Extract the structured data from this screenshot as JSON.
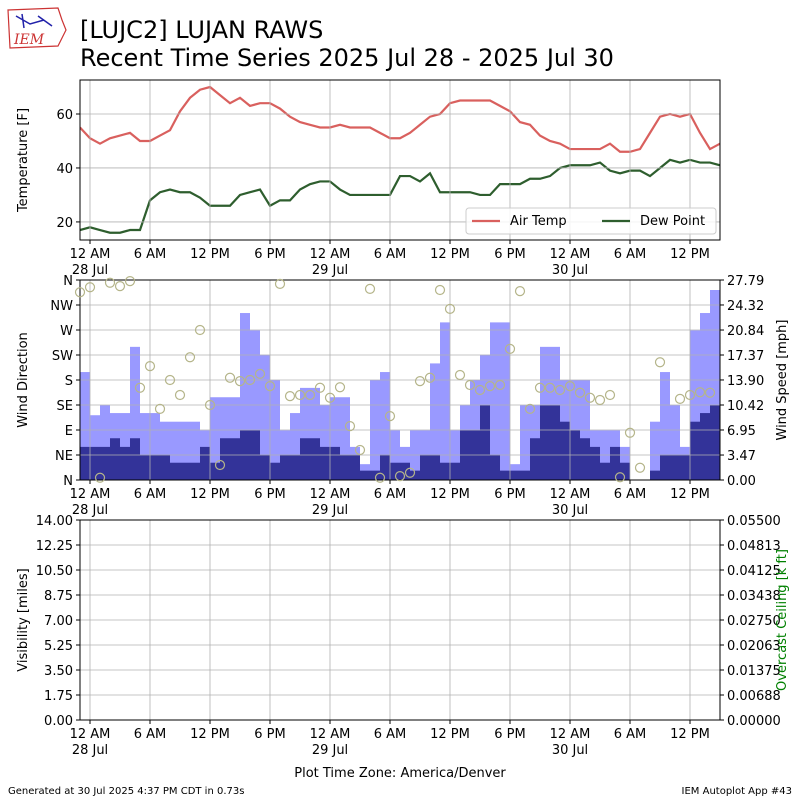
{
  "title": "[LUJC2] LUJAN RAWS",
  "subtitle": "Recent Time Series 2025 Jul 28 - 2025 Jul 30",
  "logo": "IEM",
  "xlabel": "Plot Time Zone: America/Denver",
  "footer_left": "Generated at 30 Jul 2025 4:37 PM CDT in 0.73s",
  "footer_right": "IEM Autoplot App #43",
  "chart_data": [
    {
      "type": "line",
      "ylabel": "Temperature [F]",
      "xlim": [
        "2025-07-27T23:00",
        "2025-07-30T15:00"
      ],
      "xticks": [
        {
          "value": "2025-07-28T00:00",
          "label": "12 AM\n28 Jul"
        },
        {
          "value": "2025-07-28T06:00",
          "label": "6 AM"
        },
        {
          "value": "2025-07-28T12:00",
          "label": "12 PM"
        },
        {
          "value": "2025-07-28T18:00",
          "label": "6 PM"
        },
        {
          "value": "2025-07-29T00:00",
          "label": "12 AM\n29 Jul"
        },
        {
          "value": "2025-07-29T06:00",
          "label": "6 AM"
        },
        {
          "value": "2025-07-29T12:00",
          "label": "12 PM"
        },
        {
          "value": "2025-07-29T18:00",
          "label": "6 PM"
        },
        {
          "value": "2025-07-30T00:00",
          "label": "12 AM\n30 Jul"
        },
        {
          "value": "2025-07-30T06:00",
          "label": "6 AM"
        },
        {
          "value": "2025-07-30T12:00",
          "label": "12 PM"
        }
      ],
      "ylim": [
        13.3,
        72.6
      ],
      "yticks": [
        20,
        40,
        60
      ],
      "grid": true,
      "legend": "lower right",
      "x": [
        "2025-07-27T23:00",
        "2025-07-28T00:00",
        "2025-07-28T01:00",
        "2025-07-28T02:00",
        "2025-07-28T03:00",
        "2025-07-28T04:00",
        "2025-07-28T05:00",
        "2025-07-28T06:00",
        "2025-07-28T07:00",
        "2025-07-28T08:00",
        "2025-07-28T09:00",
        "2025-07-28T10:00",
        "2025-07-28T11:00",
        "2025-07-28T12:00",
        "2025-07-28T13:00",
        "2025-07-28T14:00",
        "2025-07-28T15:00",
        "2025-07-28T16:00",
        "2025-07-28T17:00",
        "2025-07-28T18:00",
        "2025-07-28T19:00",
        "2025-07-28T20:00",
        "2025-07-28T21:00",
        "2025-07-28T22:00",
        "2025-07-28T23:00",
        "2025-07-29T00:00",
        "2025-07-29T01:00",
        "2025-07-29T02:00",
        "2025-07-29T03:00",
        "2025-07-29T04:00",
        "2025-07-29T05:00",
        "2025-07-29T06:00",
        "2025-07-29T07:00",
        "2025-07-29T08:00",
        "2025-07-29T09:00",
        "2025-07-29T10:00",
        "2025-07-29T11:00",
        "2025-07-29T12:00",
        "2025-07-29T13:00",
        "2025-07-29T14:00",
        "2025-07-29T15:00",
        "2025-07-29T16:00",
        "2025-07-29T17:00",
        "2025-07-29T18:00",
        "2025-07-29T19:00",
        "2025-07-29T20:00",
        "2025-07-29T21:00",
        "2025-07-29T22:00",
        "2025-07-29T23:00",
        "2025-07-30T00:00",
        "2025-07-30T01:00",
        "2025-07-30T02:00",
        "2025-07-30T03:00",
        "2025-07-30T04:00",
        "2025-07-30T05:00",
        "2025-07-30T06:00",
        "2025-07-30T07:00",
        "2025-07-30T08:00",
        "2025-07-30T09:00",
        "2025-07-30T10:00",
        "2025-07-30T11:00",
        "2025-07-30T12:00",
        "2025-07-30T13:00",
        "2025-07-30T14:00",
        "2025-07-30T15:00"
      ],
      "series": [
        {
          "name": "Air Temp",
          "color": "#d9605e",
          "values": [
            55,
            51,
            49,
            51,
            52,
            53,
            50,
            50,
            52,
            54,
            61,
            66,
            69,
            70,
            67,
            64,
            66,
            63,
            64,
            64,
            62,
            59,
            57,
            56,
            55,
            55,
            56,
            55,
            55,
            55,
            53,
            51,
            51,
            53,
            56,
            59,
            60,
            64,
            65,
            65,
            65,
            65,
            63,
            61,
            57,
            56,
            52,
            50,
            49,
            47,
            47,
            47,
            47,
            49,
            46,
            46,
            47,
            53,
            59,
            60,
            59,
            60,
            53,
            47,
            49
          ]
        },
        {
          "name": "Dew Point",
          "color": "#2e5e2e",
          "values": [
            17,
            18,
            17,
            16,
            16,
            17,
            17,
            28,
            31,
            32,
            31,
            31,
            29,
            26,
            26,
            26,
            30,
            31,
            32,
            26,
            28,
            28,
            32,
            34,
            35,
            35,
            32,
            30,
            30,
            30,
            30,
            30,
            37,
            37,
            35,
            38,
            31,
            31,
            31,
            31,
            30,
            30,
            34,
            34,
            34,
            36,
            36,
            37,
            40,
            41,
            41,
            41,
            42,
            39,
            38,
            39,
            39,
            37,
            40,
            43,
            42,
            43,
            42,
            42,
            41
          ]
        }
      ]
    },
    {
      "type": "bar",
      "ylabel": "Wind Direction",
      "y2label": "Wind Speed [mph]",
      "xlim": [
        "2025-07-27T23:00",
        "2025-07-30T15:00"
      ],
      "xticks": [
        {
          "value": "2025-07-28T00:00",
          "label": "12 AM\n28 Jul"
        },
        {
          "value": "2025-07-28T06:00",
          "label": "6 AM"
        },
        {
          "value": "2025-07-28T12:00",
          "label": "12 PM"
        },
        {
          "value": "2025-07-28T18:00",
          "label": "6 PM"
        },
        {
          "value": "2025-07-29T00:00",
          "label": "12 AM\n29 Jul"
        },
        {
          "value": "2025-07-29T06:00",
          "label": "6 AM"
        },
        {
          "value": "2025-07-29T12:00",
          "label": "12 PM"
        },
        {
          "value": "2025-07-29T18:00",
          "label": "6 PM"
        },
        {
          "value": "2025-07-30T00:00",
          "label": "12 AM\n30 Jul"
        },
        {
          "value": "2025-07-30T06:00",
          "label": "6 AM"
        },
        {
          "value": "2025-07-30T12:00",
          "label": "12 PM"
        }
      ],
      "ylim": [
        0,
        360
      ],
      "yticks": [
        {
          "value": 0,
          "label": "N"
        },
        {
          "value": 45,
          "label": "NE"
        },
        {
          "value": 90,
          "label": "E"
        },
        {
          "value": 135,
          "label": "SE"
        },
        {
          "value": 180,
          "label": "S"
        },
        {
          "value": 225,
          "label": "SW"
        },
        {
          "value": 270,
          "label": "W"
        },
        {
          "value": 315,
          "label": "NW"
        },
        {
          "value": 360,
          "label": "N"
        }
      ],
      "y2lim": [
        0,
        27.79
      ],
      "y2ticks": [
        {
          "value": 0,
          "label": "0.00"
        },
        3.47,
        6.95,
        10.42,
        {
          "value": 13.9,
          "label": "13.90"
        },
        17.37,
        20.84,
        24.32,
        27.79
      ],
      "grid": true,
      "x": [
        "2025-07-27T23:00",
        "2025-07-28T00:00",
        "2025-07-28T01:00",
        "2025-07-28T02:00",
        "2025-07-28T03:00",
        "2025-07-28T04:00",
        "2025-07-28T05:00",
        "2025-07-28T06:00",
        "2025-07-28T07:00",
        "2025-07-28T08:00",
        "2025-07-28T09:00",
        "2025-07-28T10:00",
        "2025-07-28T11:00",
        "2025-07-28T12:00",
        "2025-07-28T13:00",
        "2025-07-28T14:00",
        "2025-07-28T15:00",
        "2025-07-28T16:00",
        "2025-07-28T17:00",
        "2025-07-28T18:00",
        "2025-07-28T19:00",
        "2025-07-28T20:00",
        "2025-07-28T21:00",
        "2025-07-28T22:00",
        "2025-07-28T23:00",
        "2025-07-29T00:00",
        "2025-07-29T01:00",
        "2025-07-29T02:00",
        "2025-07-29T03:00",
        "2025-07-29T04:00",
        "2025-07-29T05:00",
        "2025-07-29T06:00",
        "2025-07-29T07:00",
        "2025-07-29T08:00",
        "2025-07-29T09:00",
        "2025-07-29T10:00",
        "2025-07-29T11:00",
        "2025-07-29T12:00",
        "2025-07-29T13:00",
        "2025-07-29T14:00",
        "2025-07-29T15:00",
        "2025-07-29T16:00",
        "2025-07-29T17:00",
        "2025-07-29T18:00",
        "2025-07-29T19:00",
        "2025-07-29T20:00",
        "2025-07-29T21:00",
        "2025-07-29T22:00",
        "2025-07-29T23:00",
        "2025-07-30T00:00",
        "2025-07-30T01:00",
        "2025-07-30T02:00",
        "2025-07-30T03:00",
        "2025-07-30T04:00",
        "2025-07-30T05:00",
        "2025-07-30T06:00",
        "2025-07-30T07:00",
        "2025-07-30T08:00",
        "2025-07-30T09:00",
        "2025-07-30T10:00",
        "2025-07-30T11:00",
        "2025-07-30T12:00",
        "2025-07-30T13:00",
        "2025-07-30T14:00"
      ],
      "series": [
        {
          "type": "bar",
          "axis": "y2",
          "color": "#9999ff",
          "values": [
            15.0,
            9.0,
            10.4,
            9.3,
            9.3,
            18.5,
            9.3,
            9.3,
            8.1,
            8.1,
            8.1,
            8.1,
            6.9,
            11.5,
            11.5,
            11.5,
            23.2,
            20.8,
            17.4,
            13.9,
            6.9,
            9.3,
            12.8,
            12.8,
            10.4,
            11.5,
            11.5,
            4.6,
            2.2,
            13.9,
            15.0,
            6.9,
            4.6,
            6.9,
            6.9,
            16.2,
            21.9,
            6.9,
            10.4,
            13.9,
            17.4,
            21.9,
            21.9,
            2.2,
            10.4,
            10.4,
            18.5,
            18.5,
            13.9,
            13.9,
            13.9,
            6.9,
            6.9,
            6.9,
            4.6,
            0,
            0,
            8.1,
            15.0,
            10.4,
            4.6,
            20.8,
            23.2,
            26.4
          ]
        },
        {
          "type": "bar",
          "axis": "y2",
          "color": "#333399",
          "values": [
            4.6,
            4.6,
            4.6,
            5.8,
            4.6,
            5.8,
            3.5,
            3.5,
            3.5,
            2.4,
            2.4,
            2.4,
            4.6,
            2.4,
            5.8,
            5.8,
            6.9,
            6.9,
            3.5,
            2.4,
            3.5,
            3.5,
            5.8,
            5.8,
            4.6,
            4.6,
            3.5,
            3.5,
            1.3,
            1.3,
            3.5,
            2.4,
            2.4,
            1.3,
            3.5,
            3.5,
            2.4,
            2.4,
            6.9,
            6.9,
            10.4,
            3.5,
            1.3,
            1.3,
            1.3,
            5.8,
            10.4,
            10.4,
            8.1,
            6.9,
            5.8,
            4.6,
            2.4,
            4.6,
            2.4,
            0,
            0,
            1.3,
            3.5,
            3.5,
            3.5,
            8.1,
            9.3,
            10.4
          ]
        },
        {
          "type": "scatter",
          "color": "#b5b58a",
          "values": [
            338,
            347,
            4,
            355,
            349,
            358,
            166,
            205,
            128,
            180,
            153,
            221,
            270,
            135,
            27,
            184,
            178,
            180,
            191,
            169,
            353,
            151,
            153,
            153,
            166,
            148,
            167,
            97,
            54,
            344,
            4,
            115,
            7,
            13,
            178,
            184,
            342,
            308,
            189,
            171,
            162,
            169,
            171,
            236,
            340,
            128,
            166,
            166,
            162,
            169,
            157,
            148,
            144,
            153,
            5,
            85,
            22,
            null,
            212,
            null,
            146,
            153,
            158,
            157
          ]
        }
      ]
    },
    {
      "type": "line",
      "ylabel": "Visibility [miles]",
      "y2label": "Overcast Ceiling [k ft]",
      "y2color": "#008000",
      "xlim": [
        "2025-07-27T23:00",
        "2025-07-30T15:00"
      ],
      "xticks": [
        {
          "value": "2025-07-28T00:00",
          "label": "12 AM\n28 Jul"
        },
        {
          "value": "2025-07-28T06:00",
          "label": "6 AM"
        },
        {
          "value": "2025-07-28T12:00",
          "label": "12 PM"
        },
        {
          "value": "2025-07-28T18:00",
          "label": "6 PM"
        },
        {
          "value": "2025-07-29T00:00",
          "label": "12 AM\n29 Jul"
        },
        {
          "value": "2025-07-29T06:00",
          "label": "6 AM"
        },
        {
          "value": "2025-07-29T12:00",
          "label": "12 PM"
        },
        {
          "value": "2025-07-29T18:00",
          "label": "6 PM"
        },
        {
          "value": "2025-07-30T00:00",
          "label": "12 AM\n30 Jul"
        },
        {
          "value": "2025-07-30T06:00",
          "label": "6 AM"
        },
        {
          "value": "2025-07-30T12:00",
          "label": "12 PM"
        }
      ],
      "ylim": [
        0,
        14
      ],
      "yticks": [
        {
          "value": 0,
          "label": "0.00"
        },
        1.75,
        {
          "value": 3.5,
          "label": "3.50"
        },
        5.25,
        {
          "value": 7,
          "label": "7.00"
        },
        8.75,
        {
          "value": 10.5,
          "label": "10.50"
        },
        12.25,
        {
          "value": 14,
          "label": "14.00"
        }
      ],
      "y2lim": [
        0,
        0.055
      ],
      "y2ticks": [
        {
          "value": 0,
          "label": "0.00000"
        },
        {
          "value": 0.006875,
          "label": "0.00688"
        },
        0.01375,
        {
          "value": 0.020625,
          "label": "0.02063"
        },
        {
          "value": 0.0275,
          "label": "0.02750"
        },
        {
          "value": 0.034375,
          "label": "0.03438"
        },
        0.04125,
        {
          "value": 0.048125,
          "label": "0.04813"
        },
        {
          "value": 0.055,
          "label": "0.05500"
        }
      ],
      "grid": true
    }
  ]
}
